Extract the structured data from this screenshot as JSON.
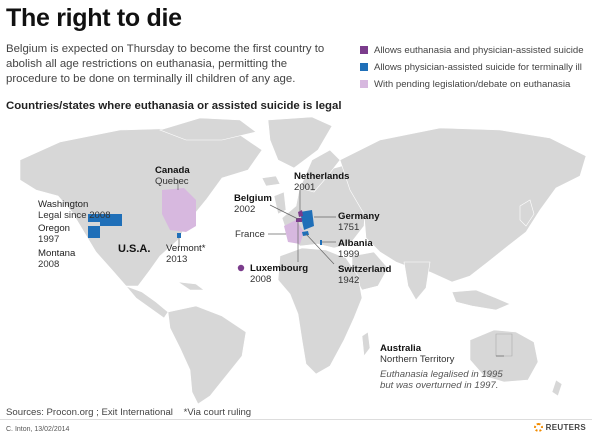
{
  "title": "The right to die",
  "subtitle": "Belgium is expected on Thursday to become the first country to abolish all age restrictions on euthanasia, permitting the procedure to be done on terminally ill children of any age.",
  "section_heading": "Countries/states where euthanasia or assisted suicide is legal",
  "legend": [
    {
      "label": "Allows euthanasia and physician-assisted suicide",
      "color": "#7b3c8c"
    },
    {
      "label": "Allows physician-assisted suicide for terminally ill",
      "color": "#1f6fb8"
    },
    {
      "label": "With pending legislation/debate on euthanasia",
      "color": "#d7b8df"
    }
  ],
  "colors": {
    "land": "#d7d7d7",
    "ocean": "#ffffff",
    "purple": "#7b3c8c",
    "blue": "#1f6fb8",
    "pink": "#d7b8df"
  },
  "places": {
    "washington": {
      "name": "Washington",
      "note": "Legal since 2008"
    },
    "oregon": {
      "name": "Oregon",
      "year": "1997"
    },
    "montana": {
      "name": "Montana",
      "year": "2008"
    },
    "usa": {
      "name": "U.S.A."
    },
    "canada": {
      "name": "Canada",
      "sub": "Quebec"
    },
    "vermont": {
      "name": "Vermont*",
      "year": "2013"
    },
    "belgium": {
      "name": "Belgium",
      "year": "2002"
    },
    "netherlands": {
      "name": "Netherlands",
      "year": "2001"
    },
    "france": {
      "name": "France"
    },
    "luxembourg": {
      "name": "Luxembourg",
      "year": "2008"
    },
    "germany": {
      "name": "Germany",
      "year": "1751"
    },
    "albania": {
      "name": "Albania",
      "year": "1999"
    },
    "switzerland": {
      "name": "Switzerland",
      "year": "1942"
    },
    "australia": {
      "name": "Australia",
      "sub": "Northern Territory",
      "note1": "Euthanasia legalised in 1995",
      "note2": "but was overturned in 1997."
    }
  },
  "footer": {
    "sources": "Sources: Procon.org ; Exit International",
    "footnote": "*Via court ruling",
    "credit": "C. Inton, 13/02/2014",
    "brand": "REUTERS"
  }
}
